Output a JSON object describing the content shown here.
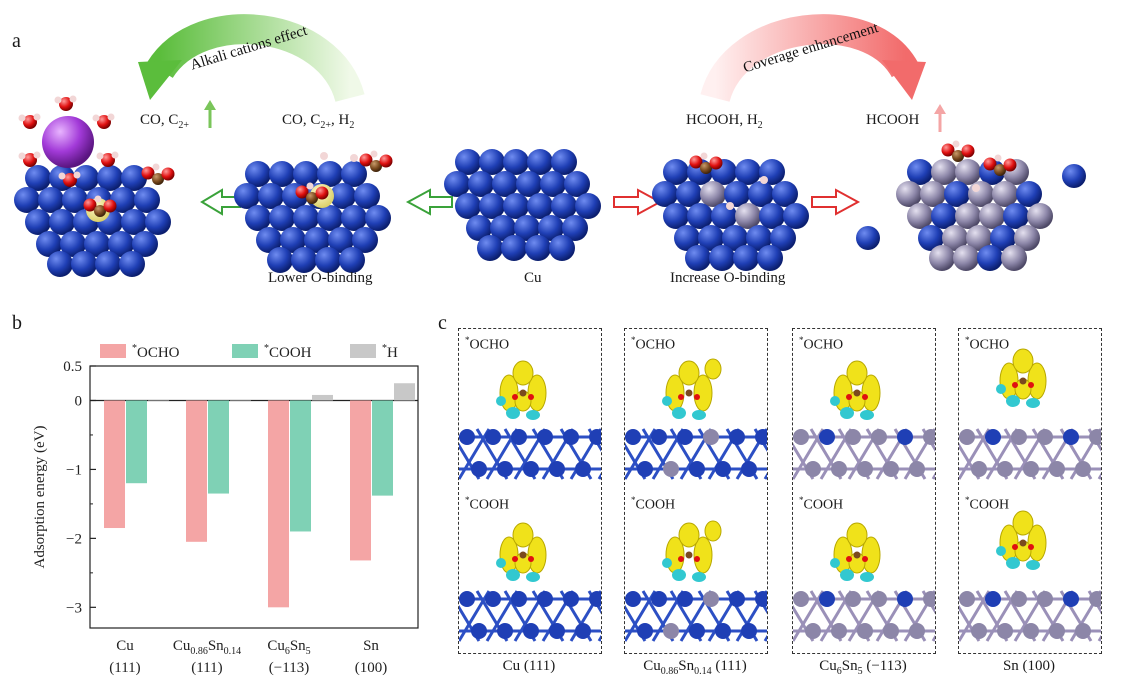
{
  "panel_a": {
    "letter": "a",
    "alkali_arrow_label": "Alkali cations effect",
    "coverage_arrow_label": "Coverage enhancement",
    "products_left_1": "CO, C",
    "products_left_1_sub": "2+",
    "products_left_2": "CO, C",
    "products_left_2_sub": "2+",
    "products_left_2_tail": ", H",
    "products_left_2_tail_sub": "2",
    "products_right_1": "HCOOH, H",
    "products_right_1_sub": "2",
    "products_right_2": "HCOOH",
    "label_lower": "Lower O-binding",
    "label_cu": "Cu",
    "label_increase": "Increase O-binding",
    "colors": {
      "cu": "#1f3fb5",
      "sn": "#8c86a8",
      "o": "#e01010",
      "c": "#7a4a1e",
      "h": "#f2d6d6",
      "k": "#a23ad8",
      "green": "#66c24a",
      "red": "#f28b8b"
    }
  },
  "panel_b": {
    "letter": "b",
    "legend": [
      "*OCHO",
      "*COOH",
      "*H"
    ],
    "ylabel": "Adsorption energy (eV)",
    "y_ticks": [
      "0.5",
      "0",
      "−1",
      "−2",
      "−3"
    ]
  },
  "chart_data": {
    "type": "bar",
    "categories": [
      "Cu (111)",
      "Cu0.86Sn0.14 (111)",
      "Cu6Sn5 (−113)",
      "Sn (100)"
    ],
    "series": [
      {
        "name": "*OCHO",
        "color": "#f4a5a5",
        "values": [
          -1.85,
          -2.05,
          -3.0,
          -2.32
        ]
      },
      {
        "name": "*COOH",
        "color": "#7fd1b5",
        "values": [
          -1.2,
          -1.35,
          -1.9,
          -1.38
        ]
      },
      {
        "name": "*H",
        "color": "#c8c8c8",
        "values": [
          0.0,
          0.0,
          0.08,
          0.25
        ]
      }
    ],
    "ylabel": "Adsorption energy (eV)",
    "ylim": [
      -3.3,
      0.5
    ],
    "legend_position": "top"
  },
  "panel_c": {
    "letter": "c",
    "top_tag": "OCHO",
    "bottom_tag": "COOH",
    "star": "*",
    "captions": [
      {
        "main": "Cu (111)"
      },
      {
        "a": "Cu",
        "a_sub": "0.86",
        "b": "Sn",
        "b_sub": "0.14",
        "c": " (111)"
      },
      {
        "a": "Cu",
        "a_sub": "6",
        "b": "Sn",
        "b_sub": "5",
        "c": " (−113)"
      },
      {
        "main": "Sn (100)"
      }
    ]
  },
  "x_labels": [
    {
      "a": "Cu",
      "paren": "(111)"
    },
    {
      "a": "Cu",
      "a_sub": "0.86",
      "b": "Sn",
      "b_sub": "0.14",
      "paren": "(111)"
    },
    {
      "a": "Cu",
      "a_sub": "6",
      "b": "Sn",
      "b_sub": "5",
      "paren": "(−113)"
    },
    {
      "a": "Sn",
      "paren": "(100)"
    }
  ]
}
